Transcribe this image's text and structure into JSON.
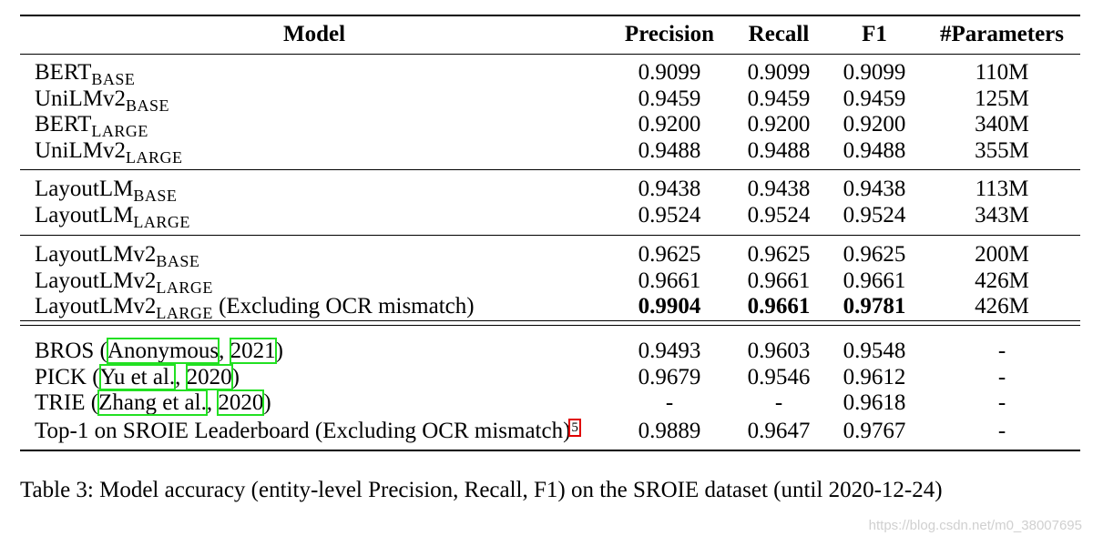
{
  "header": {
    "model": "Model",
    "precision": "Precision",
    "recall": "Recall",
    "f1": "F1",
    "params": "#Parameters"
  },
  "groups": [
    [
      {
        "name": "BERT",
        "sub": "BASE",
        "precision": "0.9099",
        "recall": "0.9099",
        "f1": "0.9099",
        "params": "110M"
      },
      {
        "name": "UniLMv2",
        "sub": "BASE",
        "precision": "0.9459",
        "recall": "0.9459",
        "f1": "0.9459",
        "params": "125M"
      },
      {
        "name": "BERT",
        "sub": "LARGE",
        "precision": "0.9200",
        "recall": "0.9200",
        "f1": "0.9200",
        "params": "340M"
      },
      {
        "name": "UniLMv2",
        "sub": "LARGE",
        "precision": "0.9488",
        "recall": "0.9488",
        "f1": "0.9488",
        "params": "355M"
      }
    ],
    [
      {
        "name": "LayoutLM",
        "sub": "BASE",
        "precision": "0.9438",
        "recall": "0.9438",
        "f1": "0.9438",
        "params": "113M"
      },
      {
        "name": "LayoutLM",
        "sub": "LARGE",
        "precision": "0.9524",
        "recall": "0.9524",
        "f1": "0.9524",
        "params": "343M"
      }
    ],
    [
      {
        "name": "LayoutLMv2",
        "sub": "BASE",
        "precision": "0.9625",
        "recall": "0.9625",
        "f1": "0.9625",
        "params": "200M"
      },
      {
        "name": "LayoutLMv2",
        "sub": "LARGE",
        "precision": "0.9661",
        "recall": "0.9661",
        "f1": "0.9661",
        "params": "426M"
      },
      {
        "name": "LayoutLMv2",
        "sub": "LARGE",
        "suffix": " (Excluding OCR mismatch)",
        "precision": "0.9904",
        "recall": "0.9661",
        "f1": "0.9781",
        "params": "426M",
        "bold": true
      }
    ],
    [
      {
        "name": "BROS (",
        "cite1": "Anonymous",
        "sep": ", ",
        "cite2": "2021",
        "close": ")",
        "precision": "0.9493",
        "recall": "0.9603",
        "f1": "0.9548",
        "params": "-"
      },
      {
        "name": "PICK (",
        "cite1": "Yu et al.",
        "sep": ", ",
        "cite2": "2020",
        "close": ")",
        "precision": "0.9679",
        "recall": "0.9546",
        "f1": "0.9612",
        "params": "-"
      },
      {
        "name": "TRIE (",
        "cite1": "Zhang et al.",
        "sep": ", ",
        "cite2": "2020",
        "close": ")",
        "precision": "-",
        "recall": "-",
        "f1": "0.9618",
        "params": "-"
      },
      {
        "name": "Top-1 on SROIE Leaderboard (Excluding OCR mismatch)",
        "footnote": "5",
        "precision": "0.9889",
        "recall": "0.9647",
        "f1": "0.9767",
        "params": "-"
      }
    ]
  ],
  "caption": "Table 3: Model accuracy (entity-level Precision, Recall, F1) on the SROIE dataset (until 2020-12-24)",
  "watermark": "https://blog.csdn.net/m0_38007695",
  "colors": {
    "citation_box": "#22e022",
    "footnote_box": "#e00000"
  }
}
